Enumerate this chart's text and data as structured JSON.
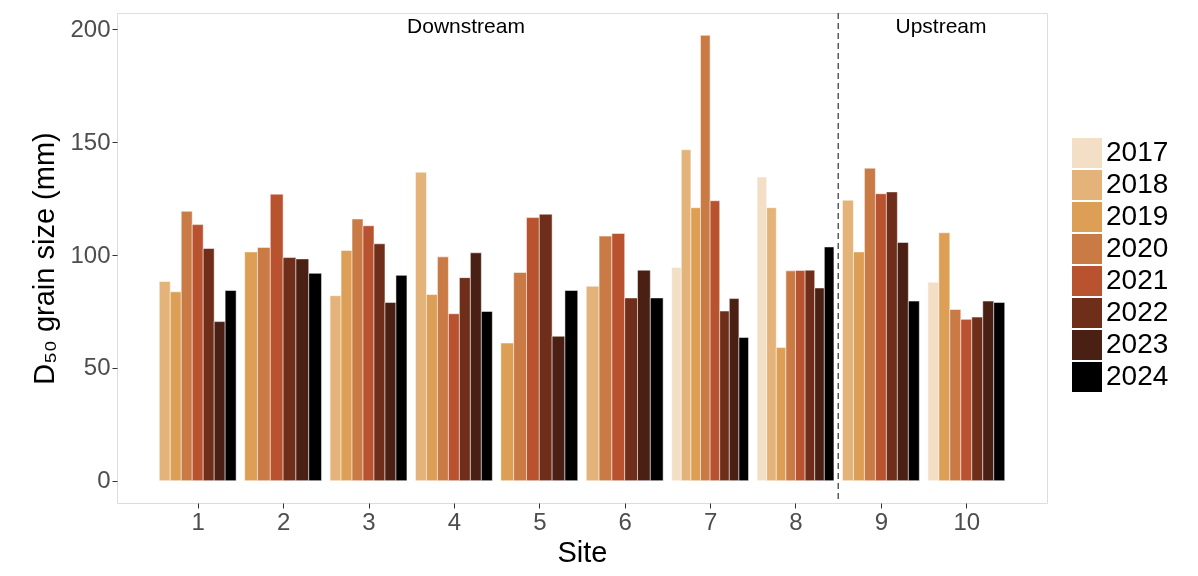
{
  "chart_data": {
    "type": "bar",
    "xlabel": "Site",
    "ylabel": "D₅₀ grain size (mm)",
    "x": [
      1,
      2,
      3,
      4,
      5,
      6,
      7,
      8,
      9,
      10
    ],
    "xlim": [
      0.055,
      10.945
    ],
    "xticks": [
      1,
      2,
      3,
      4,
      5,
      6,
      7,
      8,
      9,
      10
    ],
    "ylim": [
      -9.9,
      207.3
    ],
    "yticks": [
      0,
      50,
      100,
      150,
      200
    ],
    "series": [
      {
        "name": "2017",
        "color": "#f3dfc6",
        "values": [
          null,
          null,
          null,
          null,
          null,
          null,
          94.5,
          134.6,
          null,
          88
        ]
      },
      {
        "name": "2018",
        "color": "#e3b37a",
        "values": [
          88.3,
          null,
          82,
          136.7,
          null,
          86.2,
          146.7,
          121,
          124.3,
          null
        ]
      },
      {
        "name": "2019",
        "color": "#dc9f55",
        "values": [
          83.7,
          101.4,
          102,
          82.5,
          61,
          null,
          121,
          59,
          101.4,
          109.9
        ]
      },
      {
        "name": "2020",
        "color": "#c97a45",
        "values": [
          119.4,
          103.4,
          116,
          99.2,
          92.3,
          108.4,
          197.4,
          93,
          138.5,
          75.9
        ]
      },
      {
        "name": "2021",
        "color": "#b9532f",
        "values": [
          113.5,
          127,
          113,
          74,
          116.6,
          109.6,
          124.1,
          93.2,
          127.2,
          71.5
        ]
      },
      {
        "name": "2022",
        "color": "#6e2e1a",
        "values": [
          102.9,
          98.9,
          105,
          90,
          118.1,
          81,
          75.2,
          93.3,
          128,
          72.5
        ]
      },
      {
        "name": "2023",
        "color": "#4a1f14",
        "values": [
          70.5,
          98.3,
          79,
          101,
          64,
          93.3,
          80.7,
          85.4,
          105.6,
          79.6
        ]
      },
      {
        "name": "2024",
        "color": "#000000",
        "values": [
          84.3,
          91.9,
          91,
          75,
          84.3,
          81,
          63.5,
          103.6,
          79.6,
          79
        ]
      }
    ],
    "ref_lines": [
      {
        "axis": "x",
        "value": 8.5,
        "color": "#333333",
        "line_style": "dashed"
      }
    ],
    "annotations": [
      "Downstream",
      "Upstream"
    ],
    "legend": "right",
    "grid": false
  }
}
